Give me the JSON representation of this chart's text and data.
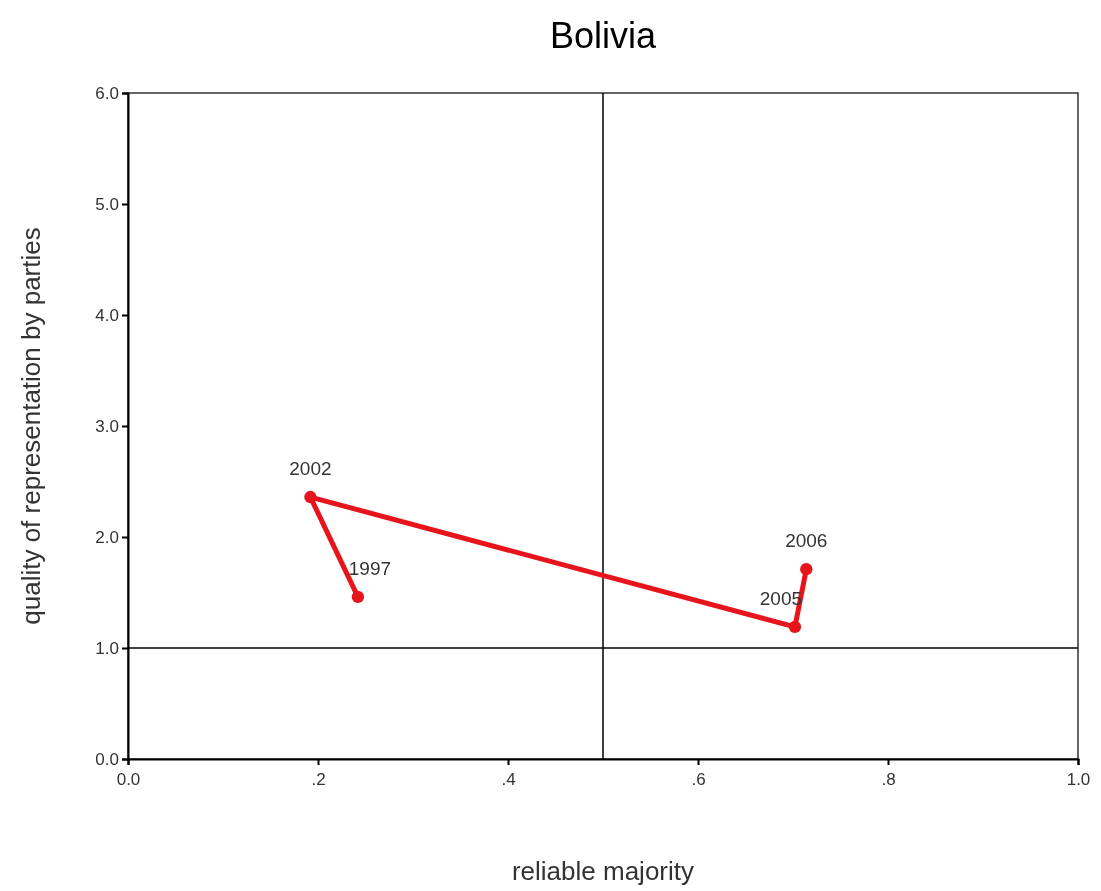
{
  "chart_data": {
    "type": "line",
    "title": "Bolivia",
    "xlabel": "reliable majority",
    "ylabel": "quality of representation by parties",
    "series": [
      {
        "color": "#e8141c",
        "x": [
          0.242,
          0.192,
          0.702,
          0.714
        ],
        "values": [
          1.46,
          2.36,
          1.19,
          1.71
        ]
      }
    ],
    "xlim": [
      0,
      1
    ],
    "xticks": [
      {
        "value": 0,
        "label": "0.0"
      },
      {
        "value": 0.2,
        "label": ".2"
      },
      {
        "value": 0.4,
        "label": ".4"
      },
      {
        "value": 0.6,
        "label": ".6"
      },
      {
        "value": 0.8,
        "label": ".8"
      },
      {
        "value": 1,
        "label": "1.0"
      }
    ],
    "ylim": [
      0,
      6
    ],
    "yticks": [
      {
        "value": 0,
        "label": "0.0"
      },
      {
        "value": 1,
        "label": "1.0"
      },
      {
        "value": 2,
        "label": "2.0"
      },
      {
        "value": 3,
        "label": "3.0"
      },
      {
        "value": 4,
        "label": "4.0"
      },
      {
        "value": 5,
        "label": "5.0"
      },
      {
        "value": 6,
        "label": "6.0"
      }
    ],
    "ref_lines": [
      {
        "axis": "x",
        "value": 0.5
      },
      {
        "axis": "y",
        "value": 1
      }
    ],
    "annotations": [
      {
        "text": "1997",
        "x": 0.242,
        "y": 1.46
      },
      {
        "text": "2002",
        "x": 0.192,
        "y": 2.36
      },
      {
        "text": "2005",
        "x": 0.702,
        "y": 1.19
      },
      {
        "text": "2006",
        "x": 0.714,
        "y": 1.71
      }
    ],
    "marker": "circle",
    "line_style": "solid"
  }
}
